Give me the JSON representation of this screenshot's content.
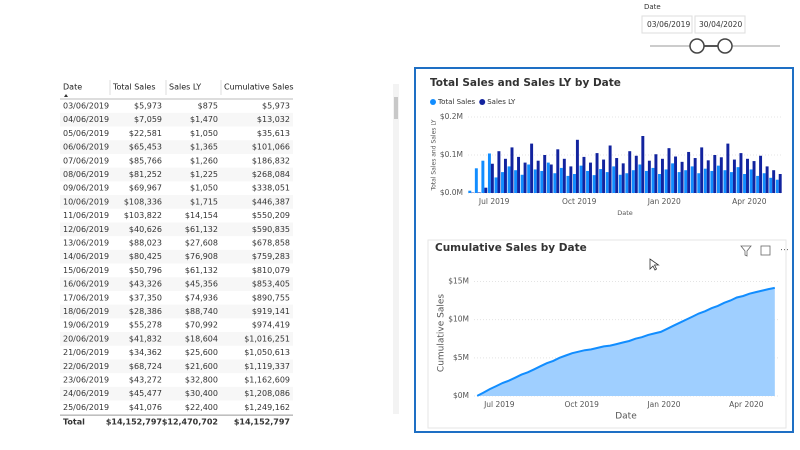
{
  "slicer": {
    "label": "Date",
    "start": "03/06/2019",
    "end": "30/04/2020"
  },
  "table": {
    "columns": [
      "Date",
      "Total Sales",
      "Sales LY",
      "Cumulative Sales"
    ],
    "rows": [
      [
        "03/06/2019",
        "$5,973",
        "$875",
        "$5,973"
      ],
      [
        "04/06/2019",
        "$7,059",
        "$1,470",
        "$13,032"
      ],
      [
        "05/06/2019",
        "$22,581",
        "$1,050",
        "$35,613"
      ],
      [
        "06/06/2019",
        "$65,453",
        "$1,365",
        "$101,066"
      ],
      [
        "07/06/2019",
        "$85,766",
        "$1,260",
        "$186,832"
      ],
      [
        "08/06/2019",
        "$81,252",
        "$1,225",
        "$268,084"
      ],
      [
        "09/06/2019",
        "$69,967",
        "$1,050",
        "$338,051"
      ],
      [
        "10/06/2019",
        "$108,336",
        "$1,715",
        "$446,387"
      ],
      [
        "11/06/2019",
        "$103,822",
        "$14,154",
        "$550,209"
      ],
      [
        "12/06/2019",
        "$40,626",
        "$61,132",
        "$590,835"
      ],
      [
        "13/06/2019",
        "$88,023",
        "$27,608",
        "$678,858"
      ],
      [
        "14/06/2019",
        "$80,425",
        "$76,908",
        "$759,283"
      ],
      [
        "15/06/2019",
        "$50,796",
        "$61,132",
        "$810,079"
      ],
      [
        "16/06/2019",
        "$43,326",
        "$45,356",
        "$853,405"
      ],
      [
        "17/06/2019",
        "$37,350",
        "$74,936",
        "$890,755"
      ],
      [
        "18/06/2019",
        "$28,386",
        "$88,740",
        "$919,141"
      ],
      [
        "19/06/2019",
        "$55,278",
        "$70,992",
        "$974,419"
      ],
      [
        "20/06/2019",
        "$41,832",
        "$18,604",
        "$1,016,251"
      ],
      [
        "21/06/2019",
        "$34,362",
        "$25,600",
        "$1,050,613"
      ],
      [
        "22/06/2019",
        "$68,724",
        "$21,600",
        "$1,119,337"
      ],
      [
        "23/06/2019",
        "$43,272",
        "$32,800",
        "$1,162,609"
      ],
      [
        "24/06/2019",
        "$45,477",
        "$30,400",
        "$1,208,086"
      ],
      [
        "25/06/2019",
        "$41,076",
        "$22,400",
        "$1,249,162"
      ]
    ],
    "total": [
      "Total",
      "$14,152,797",
      "$12,470,702",
      "$14,152,797"
    ]
  },
  "chart_data": [
    {
      "type": "bar",
      "title": "Total Sales and Sales LY by Date",
      "y_label": "Total Sales and Sales LY",
      "x_label": "Date",
      "xlim": [
        0,
        48
      ],
      "xticks": [
        {
          "value": 4,
          "label": "Jul 2019"
        },
        {
          "value": 17,
          "label": "Oct 2019"
        },
        {
          "value": 30,
          "label": "Jan 2020"
        },
        {
          "value": 43,
          "label": "Apr 2020"
        }
      ],
      "ylim": [
        0,
        200000
      ],
      "yticks": [
        {
          "value": 0,
          "label": "$0.0M"
        },
        {
          "value": 100000,
          "label": "$0.1M"
        },
        {
          "value": 200000,
          "label": "$0.2M"
        }
      ],
      "grid": true,
      "series": [
        {
          "name": "Total Sales",
          "color": "#118dff",
          "values": [
            6000,
            65000,
            85000,
            104000,
            41000,
            55000,
            70000,
            60000,
            48000,
            75000,
            62000,
            58000,
            80000,
            52000,
            66000,
            45000,
            50000,
            72000,
            58000,
            47000,
            63000,
            55000,
            70000,
            48000,
            52000,
            60000,
            75000,
            58000,
            66000,
            50000,
            62000,
            78000,
            55000,
            60000,
            70000,
            52000,
            64000,
            58000,
            72000,
            60000,
            55000,
            68000,
            50000,
            62000,
            45000,
            52000,
            40000,
            35000
          ]
        },
        {
          "name": "Sales LY",
          "color": "#12239e",
          "values": [
            1000,
            1400,
            14000,
            77000,
            110000,
            90000,
            120000,
            95000,
            80000,
            130000,
            85000,
            100000,
            75000,
            115000,
            90000,
            70000,
            140000,
            95000,
            80000,
            105000,
            88000,
            125000,
            92000,
            78000,
            110000,
            98000,
            150000,
            85000,
            102000,
            90000,
            118000,
            96000,
            82000,
            108000,
            92000,
            120000,
            86000,
            100000,
            94000,
            130000,
            88000,
            105000,
            90000,
            84000,
            98000,
            70000,
            60000,
            50000
          ]
        }
      ]
    },
    {
      "type": "area",
      "title": "Cumulative Sales by Date",
      "y_label": "Cumulative Sales",
      "x_label": "Date",
      "xlim": [
        0,
        48
      ],
      "xticks": [
        {
          "value": 4,
          "label": "Jul 2019"
        },
        {
          "value": 17,
          "label": "Oct 2019"
        },
        {
          "value": 30,
          "label": "Jan 2020"
        },
        {
          "value": 43,
          "label": "Apr 2020"
        }
      ],
      "ylim": [
        0,
        16500000
      ],
      "yticks": [
        {
          "value": 0,
          "label": "$0M"
        },
        {
          "value": 5000000,
          "label": "$5M"
        },
        {
          "value": 10000000,
          "label": "$10M"
        },
        {
          "value": 15000000,
          "label": "$15M"
        }
      ],
      "grid": true,
      "series": [
        {
          "name": "Cumulative Sales",
          "color": "#118dff",
          "values": [
            10000,
            450000,
            900000,
            1300000,
            1700000,
            2000000,
            2400000,
            2800000,
            3100000,
            3500000,
            3900000,
            4300000,
            4600000,
            5000000,
            5300000,
            5600000,
            5800000,
            6000000,
            6100000,
            6300000,
            6500000,
            6600000,
            6800000,
            7000000,
            7200000,
            7500000,
            7700000,
            8000000,
            8200000,
            8400000,
            8800000,
            9200000,
            9600000,
            10000000,
            10400000,
            10800000,
            11100000,
            11500000,
            11800000,
            12200000,
            12500000,
            12900000,
            13100000,
            13400000,
            13600000,
            13800000,
            14000000,
            14152797
          ]
        }
      ]
    }
  ]
}
